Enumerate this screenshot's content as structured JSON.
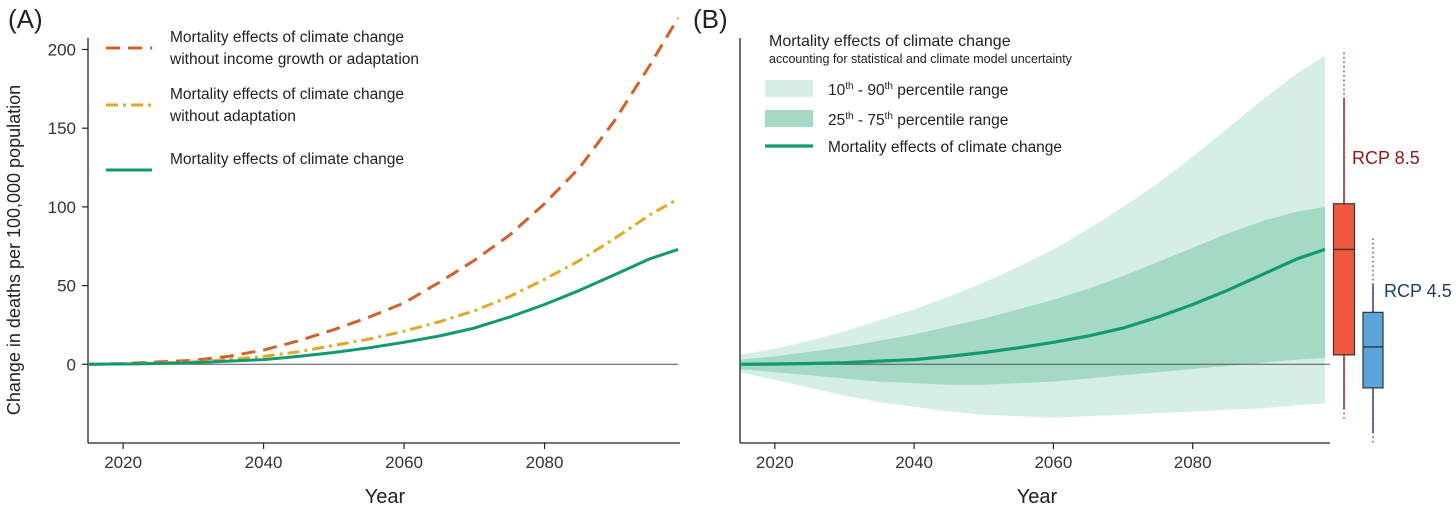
{
  "chart_data": [
    {
      "type": "line",
      "panel_label": "(A)",
      "xlabel": "Year",
      "ylabel": "Change in deaths per 100,000 population",
      "xlim": [
        2015,
        2099
      ],
      "ylim": [
        -50,
        220
      ],
      "xticks": [
        2020,
        2040,
        2060,
        2080
      ],
      "yticks": [
        0,
        50,
        100,
        150,
        200
      ],
      "x": [
        2015,
        2020,
        2025,
        2030,
        2035,
        2040,
        2045,
        2050,
        2055,
        2060,
        2065,
        2070,
        2075,
        2080,
        2085,
        2090,
        2095,
        2099
      ],
      "series": [
        {
          "name": "Mortality effects of climate change\nwithout income growth or adaptation",
          "legend_lines": [
            "Mortality effects of climate change",
            "without income growth or adaptation"
          ],
          "color": "#d2622a",
          "dash": "dashed",
          "values": [
            0,
            0.5,
            1.5,
            2.5,
            5,
            9,
            15,
            22,
            30,
            39,
            52,
            66,
            82,
            102,
            125,
            155,
            190,
            220
          ]
        },
        {
          "name": "Mortality effects of climate change\nwithout adaptation",
          "legend_lines": [
            "Mortality effects of climate change",
            "without adaptation"
          ],
          "color": "#e0a829",
          "dash": "dashdot",
          "values": [
            0,
            0.3,
            0.8,
            1.5,
            3,
            5,
            8,
            12,
            16,
            21,
            27,
            34,
            43,
            54,
            66,
            80,
            95,
            105
          ]
        },
        {
          "name": "Mortality effects of climate change",
          "legend_lines": [
            "Mortality effects of climate change"
          ],
          "color": "#13996f",
          "dash": "solid",
          "values": [
            0,
            0.2,
            0.5,
            1,
            2,
            3,
            5,
            7.5,
            10.5,
            14,
            18,
            23,
            30,
            38,
            47,
            57,
            67,
            73
          ]
        }
      ]
    },
    {
      "type": "area",
      "panel_label": "(B)",
      "title": "Mortality effects of climate change",
      "subtitle": "accounting for statistical and climate model uncertainty",
      "xlabel": "Year",
      "xlim": [
        2015,
        2099
      ],
      "ylim": [
        -50,
        220
      ],
      "xticks": [
        2020,
        2040,
        2060,
        2080
      ],
      "x": [
        2015,
        2020,
        2025,
        2030,
        2035,
        2040,
        2045,
        2050,
        2055,
        2060,
        2065,
        2070,
        2075,
        2080,
        2085,
        2090,
        2095,
        2099
      ],
      "bands": [
        {
          "name": "10th - 90th percentile range",
          "label_parts": [
            "10",
            "th",
            " - 90",
            "th",
            " percentile range"
          ],
          "color": "#d6efe6",
          "upper": [
            6,
            10,
            15,
            21,
            28,
            35,
            43,
            52,
            62,
            73,
            86,
            100,
            115,
            132,
            150,
            168,
            185,
            196
          ],
          "lower": [
            -5,
            -10,
            -15,
            -20,
            -24,
            -27,
            -30,
            -32,
            -33,
            -34,
            -33,
            -32,
            -31,
            -30,
            -29,
            -28,
            -26,
            -25
          ]
        },
        {
          "name": "25th - 75th percentile range",
          "label_parts": [
            "25",
            "th",
            " - 75",
            "th",
            " percentile range"
          ],
          "color": "#a3d9c5",
          "upper": [
            3,
            5,
            8,
            11,
            15,
            19,
            24,
            29,
            35,
            41,
            48,
            56,
            65,
            74,
            83,
            91,
            97,
            100
          ],
          "lower": [
            -3,
            -5,
            -7,
            -9,
            -11,
            -12,
            -13,
            -13,
            -12,
            -11,
            -9,
            -7,
            -5,
            -3,
            -1,
            1,
            3,
            4
          ]
        }
      ],
      "series": [
        {
          "name": "Mortality effects of climate change",
          "color": "#13996f",
          "values": [
            0,
            0.2,
            0.5,
            1,
            2,
            3,
            5,
            7.5,
            10.5,
            14,
            18,
            23,
            30,
            38,
            47,
            57,
            67,
            73
          ]
        }
      ],
      "boxplots": [
        {
          "label": "RCP 8.5",
          "color": "#ef5a3c",
          "label_color": "#8b1a1a",
          "whisker_color": "#8b1a1a",
          "whisker_low": -35,
          "q1": 6,
          "median": 73,
          "q3": 102,
          "whisker_high": 198
        },
        {
          "label": "RCP 4.5",
          "color": "#5aa6dc",
          "label_color": "#1f3f66",
          "whisker_color": "#1f3f66",
          "whisker_low": -50,
          "q1": -15,
          "median": 11,
          "q3": 33,
          "whisker_high": 80
        }
      ]
    }
  ]
}
